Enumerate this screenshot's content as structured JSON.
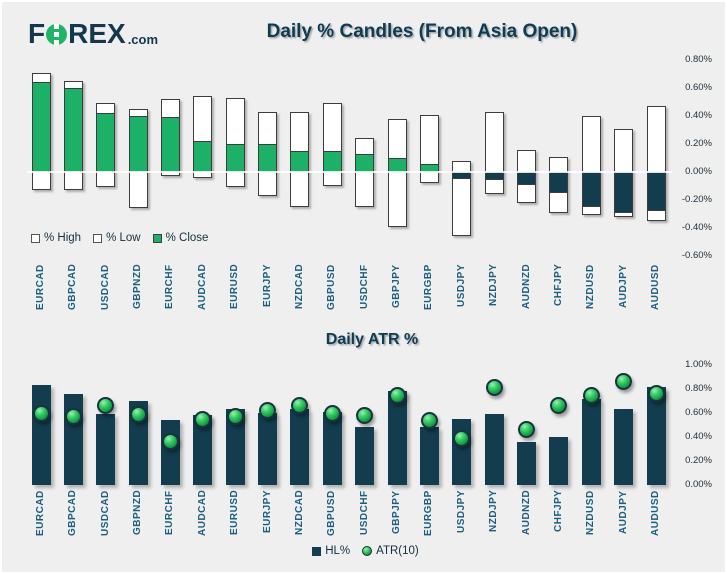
{
  "header": {
    "logo": {
      "f": "F",
      "rex": "REX",
      "com": ".com"
    },
    "title": "Daily % Candles (From Asia Open)"
  },
  "colors": {
    "background": "#efeff0",
    "brand_navy": "#14374c",
    "brand_green": "#21b467",
    "candle_green": "#1db167",
    "candle_navy": "#133d4e",
    "bar_navy": "#133d4e",
    "sphere_green": "#2bc25a",
    "title_text": "#0e3c51"
  },
  "chart_data": [
    {
      "type": "bar",
      "subtype": "floating-candle",
      "title": "Daily % Candles (From Asia Open)",
      "legend": [
        "% High",
        "% Low",
        "% Close"
      ],
      "legend_position": "bottom-left",
      "y_ticks": [
        "0.80%",
        "0.60%",
        "0.40%",
        "0.20%",
        "0.00%",
        "-0.20%",
        "-0.40%",
        "-0.60%"
      ],
      "ylim": [
        -0.6,
        0.8
      ],
      "grid": "zero-line-only",
      "categories": [
        "EURCAD",
        "GBPCAD",
        "USDCAD",
        "GBPNZD",
        "EURCHF",
        "AUDCAD",
        "EURUSD",
        "EURJPY",
        "NZDCAD",
        "GBPUSD",
        "USDCHF",
        "GBPJPY",
        "EURGBP",
        "USDJPY",
        "NZDJPY",
        "AUDNZD",
        "CHFJPY",
        "NZDUSD",
        "AUDJPY",
        "AUDUSD"
      ],
      "series": [
        {
          "name": "% High",
          "values": [
            0.71,
            0.65,
            0.49,
            0.45,
            0.52,
            0.54,
            0.53,
            0.43,
            0.43,
            0.49,
            0.24,
            0.38,
            0.41,
            0.08,
            0.43,
            0.16,
            0.11,
            0.4,
            0.31,
            0.47
          ]
        },
        {
          "name": "% Low",
          "values": [
            -0.13,
            -0.13,
            -0.11,
            -0.26,
            -0.03,
            -0.04,
            -0.11,
            -0.17,
            -0.25,
            -0.1,
            -0.25,
            -0.39,
            -0.08,
            -0.46,
            -0.16,
            -0.22,
            -0.29,
            -0.31,
            -0.32,
            -0.35
          ]
        },
        {
          "name": "% Close",
          "values": [
            0.64,
            0.6,
            0.42,
            0.4,
            0.39,
            0.22,
            0.2,
            0.2,
            0.15,
            0.15,
            0.13,
            0.1,
            0.06,
            -0.05,
            -0.06,
            -0.09,
            -0.15,
            -0.25,
            -0.29,
            -0.28
          ]
        }
      ]
    },
    {
      "type": "bar",
      "subtype": "bar-plus-scatter",
      "title": "Daily ATR %",
      "legend": [
        "HL%",
        "ATR(10)"
      ],
      "legend_position": "bottom-center",
      "y_ticks": [
        "1.00%",
        "0.80%",
        "0.60%",
        "0.40%",
        "0.20%",
        "0.00%"
      ],
      "ylim": [
        0,
        1.0
      ],
      "grid": "off",
      "categories": [
        "EURCAD",
        "GBPCAD",
        "USDCAD",
        "GBPNZD",
        "EURCHF",
        "AUDCAD",
        "EURUSD",
        "EURJPY",
        "NZDCAD",
        "GBPUSD",
        "USDCHF",
        "GBPJPY",
        "EURGBP",
        "USDJPY",
        "NZDJPY",
        "AUDNZD",
        "CHFJPY",
        "NZDUSD",
        "AUDJPY",
        "AUDUSD"
      ],
      "series": [
        {
          "name": "HL%",
          "type": "bar",
          "values": [
            0.83,
            0.76,
            0.59,
            0.7,
            0.54,
            0.58,
            0.63,
            0.6,
            0.63,
            0.61,
            0.48,
            0.78,
            0.48,
            0.55,
            0.59,
            0.36,
            0.4,
            0.72,
            0.63,
            0.82
          ]
        },
        {
          "name": "ATR(10)",
          "type": "scatter",
          "values": [
            0.6,
            0.57,
            0.66,
            0.59,
            0.36,
            0.55,
            0.57,
            0.62,
            0.66,
            0.6,
            0.58,
            0.75,
            0.54,
            0.39,
            0.81,
            0.46,
            0.66,
            0.75,
            0.86,
            0.76
          ]
        }
      ]
    }
  ]
}
